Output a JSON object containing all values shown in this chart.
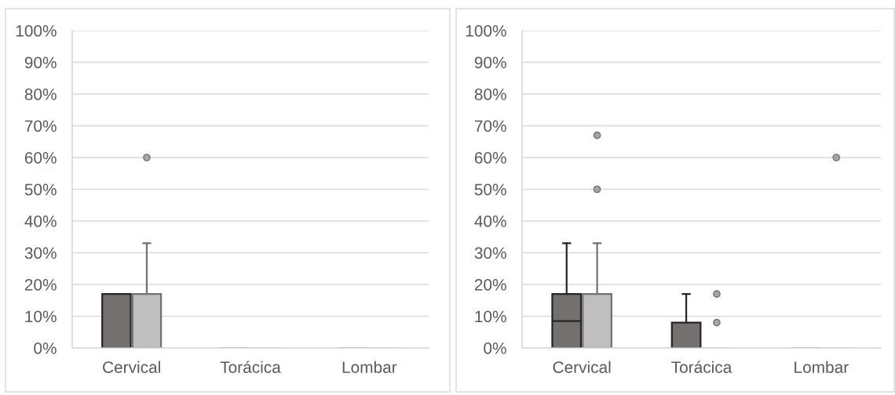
{
  "chart_data": [
    {
      "type": "box",
      "categories": [
        "Cervical",
        "Torácica",
        "Lombar"
      ],
      "ylim": [
        0,
        100
      ],
      "yticks": [
        {
          "value": 0,
          "label": "0%"
        },
        {
          "value": 10,
          "label": "10%"
        },
        {
          "value": 20,
          "label": "20%"
        },
        {
          "value": 30,
          "label": "30%"
        },
        {
          "value": 40,
          "label": "40%"
        },
        {
          "value": 50,
          "label": "50%"
        },
        {
          "value": 60,
          "label": "60%"
        },
        {
          "value": 70,
          "label": "70%"
        },
        {
          "value": 80,
          "label": "80%"
        },
        {
          "value": 90,
          "label": "90%"
        },
        {
          "value": 100,
          "label": "100%"
        }
      ],
      "grid": "y",
      "series": [
        {
          "color": "#757070",
          "boxes": [
            {
              "low": 0,
              "q1": 0,
              "median": 0,
              "q3": 17,
              "high": 17
            },
            {
              "low": 0,
              "q1": 0,
              "median": 0,
              "q3": 0,
              "high": 0
            },
            {
              "low": 0,
              "q1": 0,
              "median": 0,
              "q3": 0,
              "high": 0
            }
          ]
        },
        {
          "color": "#bfbfbf",
          "boxes": [
            {
              "low": 0,
              "q1": 0,
              "median": 0,
              "q3": 17,
              "high": 33,
              "outliers": [
                60
              ]
            },
            {
              "low": 0,
              "q1": 0,
              "median": 0,
              "q3": 0,
              "high": 0
            },
            {
              "low": 0,
              "q1": 0,
              "median": 0,
              "q3": 0,
              "high": 0
            }
          ]
        }
      ]
    },
    {
      "type": "box",
      "categories": [
        "Cervical",
        "Torácica",
        "Lombar"
      ],
      "ylim": [
        0,
        100
      ],
      "yticks": [
        {
          "value": 0,
          "label": "0%"
        },
        {
          "value": 10,
          "label": "10%"
        },
        {
          "value": 20,
          "label": "20%"
        },
        {
          "value": 30,
          "label": "30%"
        },
        {
          "value": 40,
          "label": "40%"
        },
        {
          "value": 50,
          "label": "50%"
        },
        {
          "value": 60,
          "label": "60%"
        },
        {
          "value": 70,
          "label": "70%"
        },
        {
          "value": 80,
          "label": "80%"
        },
        {
          "value": 90,
          "label": "90%"
        },
        {
          "value": 100,
          "label": "100%"
        }
      ],
      "grid": "y",
      "series": [
        {
          "color": "#757070",
          "boxes": [
            {
              "low": 0,
              "q1": 0,
              "median": 8.5,
              "q3": 17,
              "high": 33
            },
            {
              "low": 0,
              "q1": 0,
              "median": 0,
              "q3": 8,
              "high": 17
            },
            {
              "low": 0,
              "q1": 0,
              "median": 0,
              "q3": 0,
              "high": 0
            }
          ]
        },
        {
          "color": "#bfbfbf",
          "boxes": [
            {
              "low": 0,
              "q1": 0,
              "median": 0,
              "q3": 17,
              "high": 33,
              "outliers": [
                50,
                67
              ]
            },
            {
              "low": 0,
              "q1": 0,
              "median": 0,
              "q3": 0,
              "high": 0,
              "outliers": [
                8,
                17
              ]
            },
            {
              "low": 0,
              "q1": 0,
              "median": 0,
              "q3": 0,
              "high": 0,
              "outliers": [
                60
              ]
            }
          ]
        }
      ]
    }
  ]
}
